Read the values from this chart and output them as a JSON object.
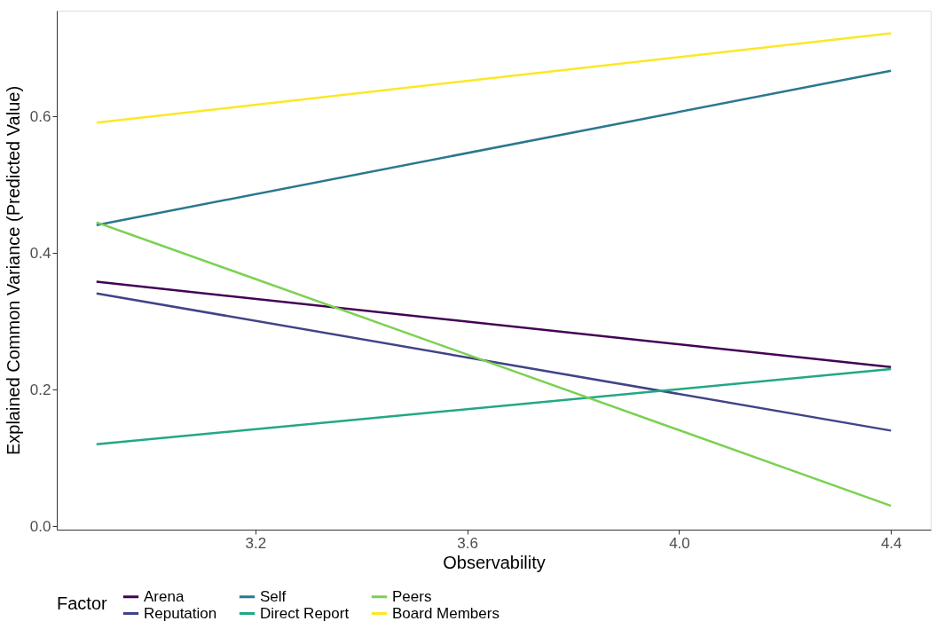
{
  "chart_data": {
    "type": "line",
    "xlabel": "Observability",
    "ylabel": "Explained Common Variance (Predicted Value)",
    "legend_title": "Factor",
    "legend": "bottom",
    "grid": false,
    "x": [
      2.9,
      4.4
    ],
    "xlim": [
      2.825,
      4.475
    ],
    "xticks": [
      {
        "value": 3.2,
        "label": "3.2"
      },
      {
        "value": 3.6,
        "label": "3.6"
      },
      {
        "value": 4.0,
        "label": "4.0"
      },
      {
        "value": 4.4,
        "label": "4.4"
      }
    ],
    "ylim": [
      -0.005,
      0.755
    ],
    "yticks": [
      {
        "value": 0,
        "label": "0.0"
      },
      {
        "value": 0.2,
        "label": "0.2"
      },
      {
        "value": 0.4,
        "label": "0.4"
      },
      {
        "value": 0.6,
        "label": "0.6"
      }
    ],
    "series": [
      {
        "name": "Arena",
        "color": "#440154",
        "values": [
          0.358,
          0.233
        ]
      },
      {
        "name": "Reputation",
        "color": "#414487",
        "values": [
          0.341,
          0.14
        ]
      },
      {
        "name": "Self",
        "color": "#2a788e",
        "values": [
          0.441,
          0.667
        ]
      },
      {
        "name": "Direct Report",
        "color": "#22a884",
        "values": [
          0.12,
          0.23
        ]
      },
      {
        "name": "Peers",
        "color": "#7ad151",
        "values": [
          0.445,
          0.03
        ]
      },
      {
        "name": "Board Members",
        "color": "#fde725",
        "values": [
          0.591,
          0.722
        ]
      }
    ]
  }
}
